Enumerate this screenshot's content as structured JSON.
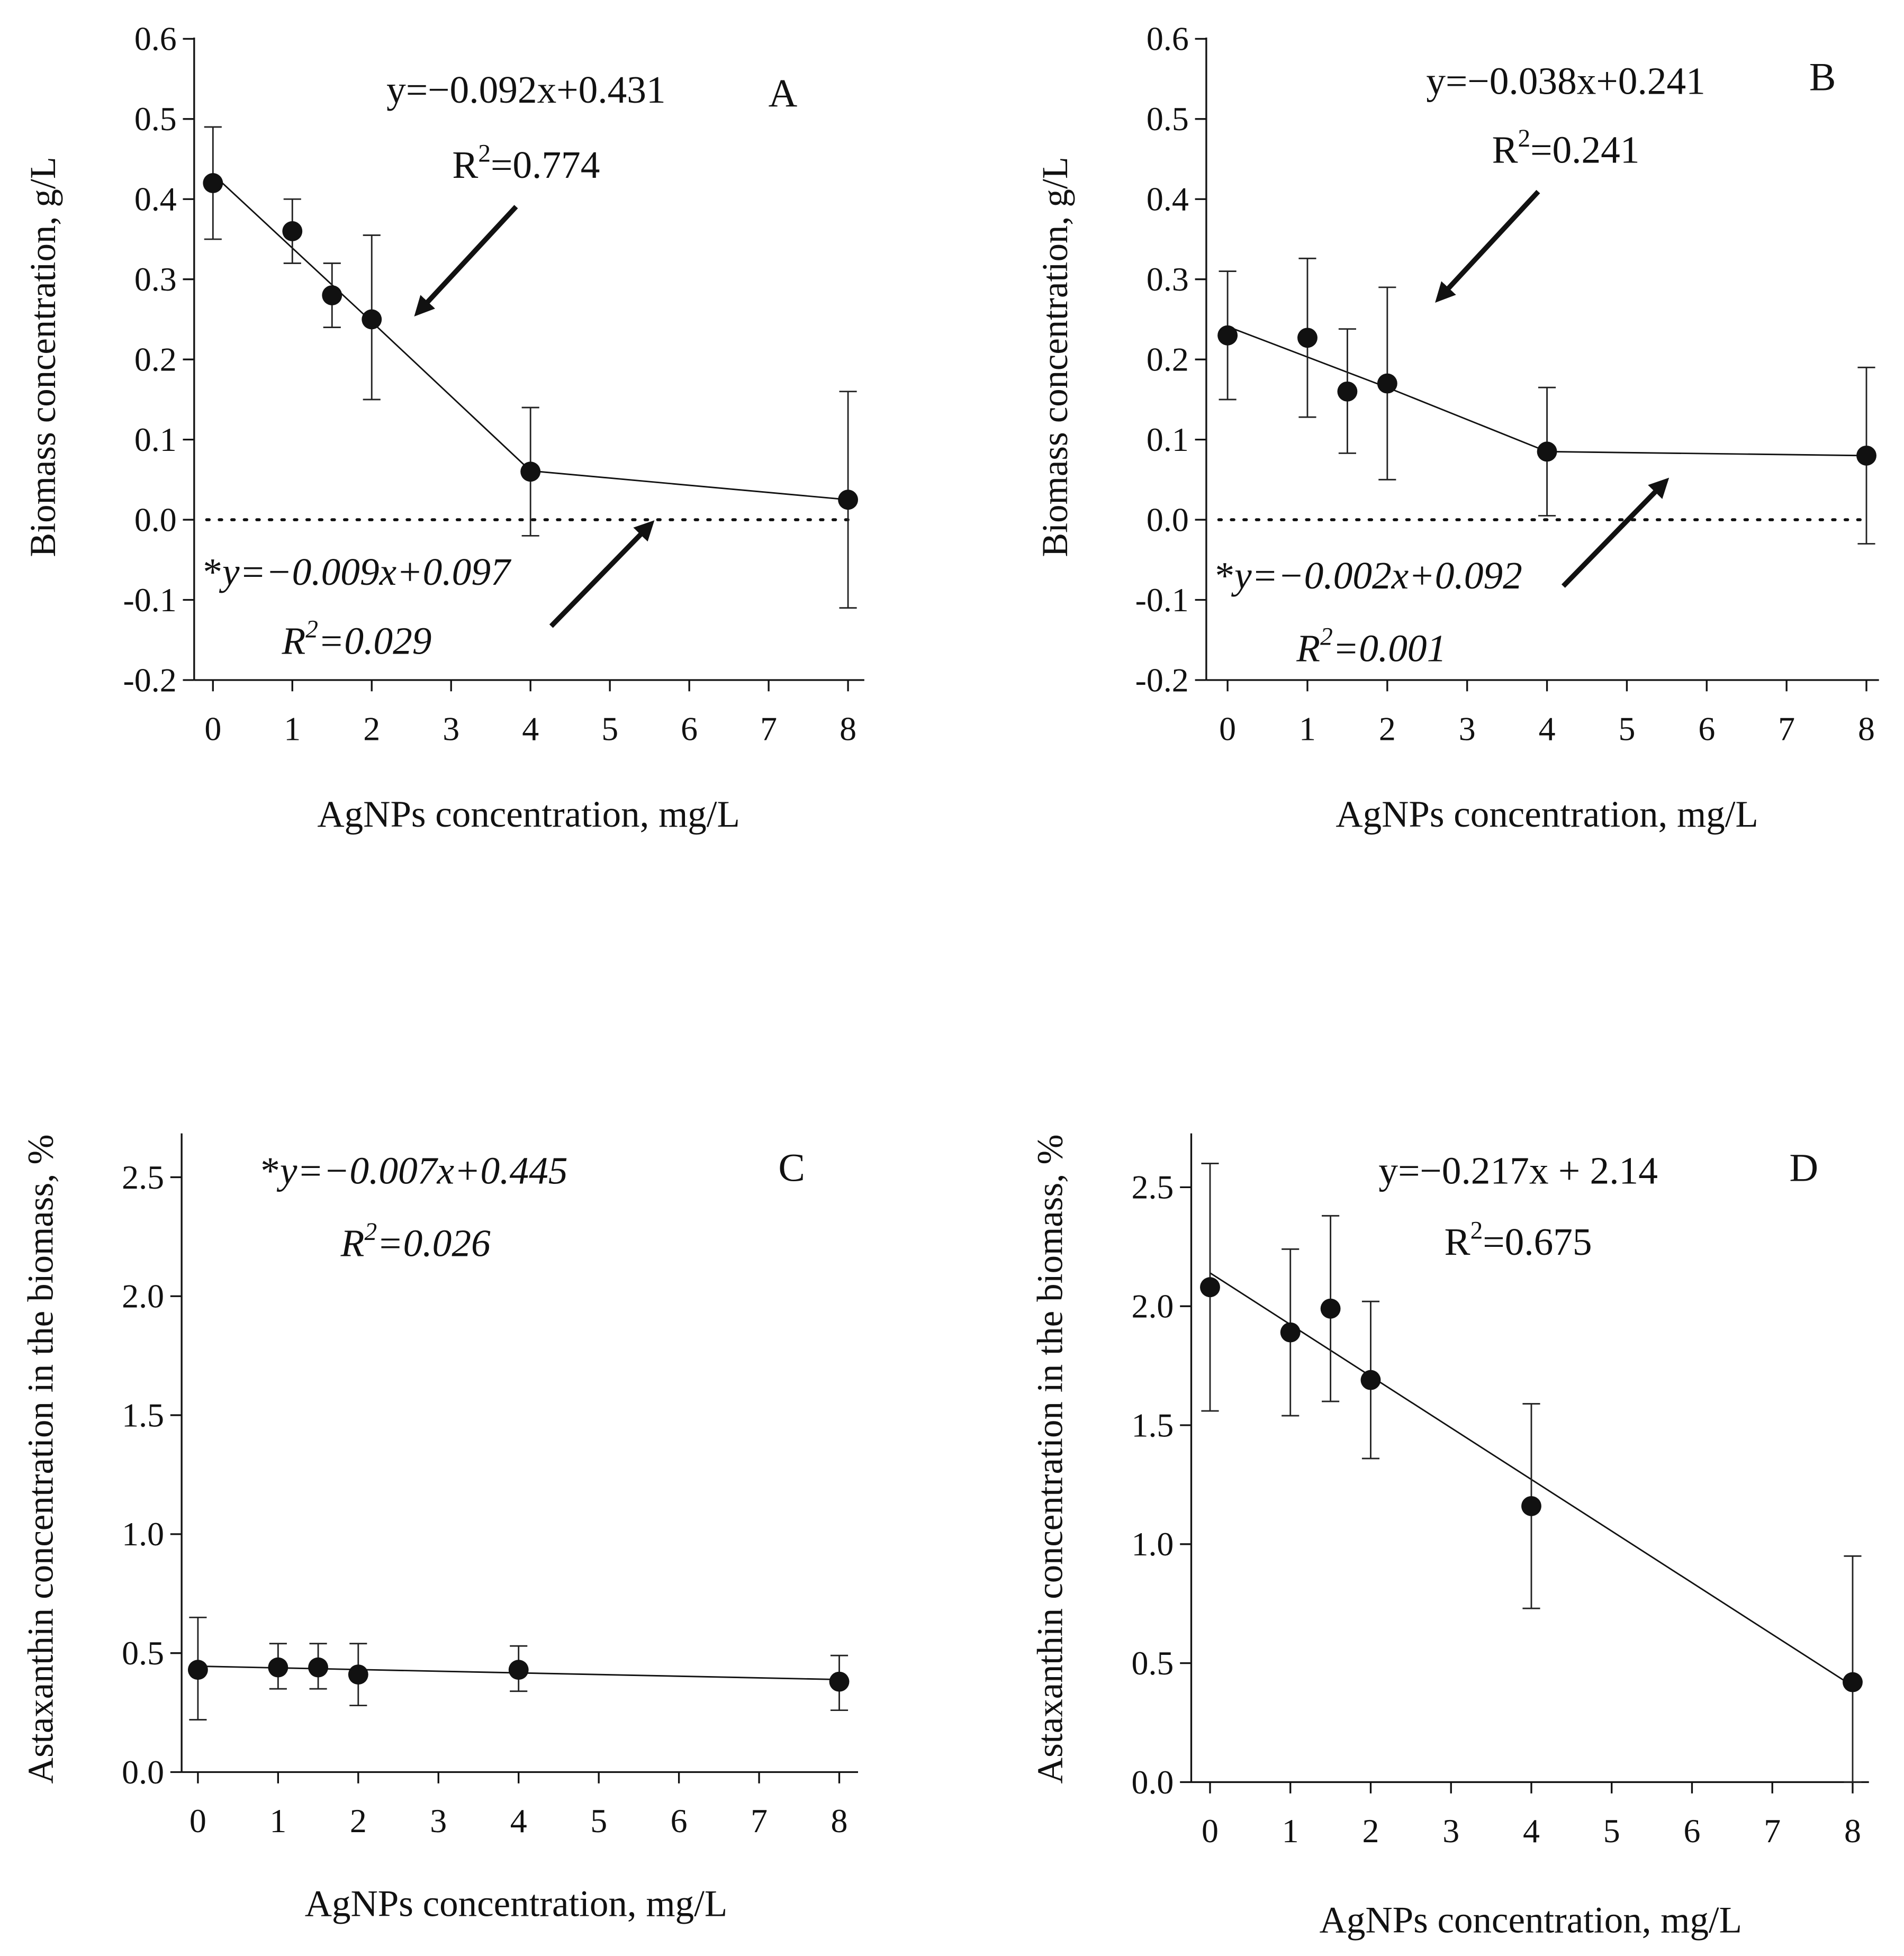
{
  "chart_data": [
    {
      "panel": "A",
      "type": "scatter",
      "xlabel": "AgNPs concentration, mg/L",
      "ylabel": "Biomass concentration, g/L",
      "xlim": [
        0,
        8
      ],
      "ylim": [
        -0.2,
        0.6
      ],
      "xticks": [
        0,
        1,
        2,
        3,
        4,
        5,
        6,
        7,
        8
      ],
      "yticks": [
        -0.2,
        -0.1,
        0.0,
        0.1,
        0.2,
        0.3,
        0.4,
        0.5,
        0.6
      ],
      "ytick_labels": [
        "-0.2",
        "-0.1",
        "0.0",
        "0.1",
        "0.2",
        "0.3",
        "0.4",
        "0.5",
        "0.6"
      ],
      "xtick_labels": [
        "0",
        "1",
        "2",
        "3",
        "4",
        "5",
        "6",
        "7",
        "8"
      ],
      "points": [
        {
          "x": 0,
          "y": 0.42,
          "err_low": 0.35,
          "err_high": 0.49
        },
        {
          "x": 1,
          "y": 0.36,
          "err_low": 0.32,
          "err_high": 0.4
        },
        {
          "x": 1.5,
          "y": 0.28,
          "err_low": 0.24,
          "err_high": 0.32
        },
        {
          "x": 2,
          "y": 0.25,
          "err_low": 0.15,
          "err_high": 0.355
        },
        {
          "x": 4,
          "y": 0.06,
          "err_low": -0.02,
          "err_high": 0.14
        },
        {
          "x": 8,
          "y": 0.025,
          "err_low": -0.11,
          "err_high": 0.16
        }
      ],
      "connecting_line": [
        [
          0,
          0.431
        ],
        [
          2,
          0.247
        ],
        [
          4,
          0.061
        ],
        [
          8,
          0.025
        ]
      ],
      "zero_line": true,
      "annotations": [
        {
          "id": "eq1",
          "text": "y=−0.092x+0.431",
          "italic": false
        },
        {
          "id": "r1",
          "r_prefix": "R",
          "sup": "2",
          "value": "=0.774",
          "italic": false
        },
        {
          "id": "eq2",
          "star": "*",
          "text": "y=−0.009x+0.097",
          "italic": true
        },
        {
          "id": "r2",
          "r_prefix": "R",
          "sup": "2",
          "value": "=0.029",
          "italic": true
        }
      ]
    },
    {
      "panel": "B",
      "type": "scatter",
      "xlabel": "AgNPs concentration, mg/L",
      "ylabel": "Biomass concentration, g/L",
      "xlim": [
        0,
        8
      ],
      "ylim": [
        -0.2,
        0.6
      ],
      "xticks": [
        0,
        1,
        2,
        3,
        4,
        5,
        6,
        7,
        8
      ],
      "yticks": [
        -0.2,
        -0.1,
        0.0,
        0.1,
        0.2,
        0.3,
        0.4,
        0.5,
        0.6
      ],
      "ytick_labels": [
        "-0.2",
        "-0.1",
        "0.0",
        "0.1",
        "0.2",
        "0.3",
        "0.4",
        "0.5",
        "0.6"
      ],
      "xtick_labels": [
        "0",
        "1",
        "2",
        "3",
        "4",
        "5",
        "6",
        "7",
        "8"
      ],
      "points": [
        {
          "x": 0,
          "y": 0.23,
          "err_low": 0.15,
          "err_high": 0.31
        },
        {
          "x": 1,
          "y": 0.227,
          "err_low": 0.128,
          "err_high": 0.326
        },
        {
          "x": 1.5,
          "y": 0.16,
          "err_low": 0.083,
          "err_high": 0.238
        },
        {
          "x": 2,
          "y": 0.17,
          "err_low": 0.05,
          "err_high": 0.29
        },
        {
          "x": 4,
          "y": 0.085,
          "err_low": 0.005,
          "err_high": 0.165
        },
        {
          "x": 8,
          "y": 0.08,
          "err_low": -0.03,
          "err_high": 0.19
        }
      ],
      "connecting_line": [
        [
          0,
          0.241
        ],
        [
          2,
          0.165
        ],
        [
          4,
          0.085
        ],
        [
          8,
          0.08
        ]
      ],
      "zero_line": true,
      "annotations": [
        {
          "id": "eq1",
          "text": "y=−0.038x+0.241",
          "italic": false
        },
        {
          "id": "r1",
          "r_prefix": "R",
          "sup": "2",
          "value": "=0.241",
          "italic": false
        },
        {
          "id": "eq2",
          "star": "*",
          "text": "y=−0.002x+0.092",
          "italic": true
        },
        {
          "id": "r2",
          "r_prefix": "R",
          "sup": "2",
          "value": "=0.001",
          "italic": true
        }
      ]
    },
    {
      "panel": "C",
      "type": "scatter",
      "xlabel": "AgNPs concentration, mg/L",
      "ylabel": "Astaxanthin concentration in the biomass, %",
      "xlim": [
        0,
        8
      ],
      "ylim": [
        0,
        2.7
      ],
      "xticks": [
        0,
        1,
        2,
        3,
        4,
        5,
        6,
        7,
        8
      ],
      "yticks": [
        0.0,
        0.5,
        1.0,
        1.5,
        2.0,
        2.5
      ],
      "ytick_labels": [
        "0.0",
        "0.5",
        "1.0",
        "1.5",
        "2.0",
        "2.5"
      ],
      "xtick_labels": [
        "0",
        "1",
        "2",
        "3",
        "4",
        "5",
        "6",
        "7",
        "8"
      ],
      "points": [
        {
          "x": 0,
          "y": 0.43,
          "err_low": 0.22,
          "err_high": 0.65
        },
        {
          "x": 1,
          "y": 0.44,
          "err_low": 0.35,
          "err_high": 0.54
        },
        {
          "x": 1.5,
          "y": 0.44,
          "err_low": 0.35,
          "err_high": 0.54
        },
        {
          "x": 2,
          "y": 0.41,
          "err_low": 0.28,
          "err_high": 0.54
        },
        {
          "x": 4,
          "y": 0.43,
          "err_low": 0.34,
          "err_high": 0.53
        },
        {
          "x": 8,
          "y": 0.38,
          "err_low": 0.26,
          "err_high": 0.49
        }
      ],
      "connecting_line": [
        [
          0,
          0.445
        ],
        [
          1,
          0.438
        ],
        [
          2,
          0.431
        ],
        [
          4,
          0.417
        ],
        [
          8,
          0.389
        ]
      ],
      "zero_line": false,
      "annotations": [
        {
          "id": "eq2",
          "star": "*",
          "text": "y=−0.007x+0.445",
          "italic": true
        },
        {
          "id": "r2",
          "r_prefix": "R",
          "sup": "2",
          "value": "=0.026",
          "italic": true
        }
      ]
    },
    {
      "panel": "D",
      "type": "scatter",
      "xlabel": "AgNPs concentration, mg/L",
      "ylabel": "Astaxanthin concentration in the biomass, %",
      "xlim": [
        0,
        8
      ],
      "ylim": [
        0,
        2.7
      ],
      "xticks": [
        0,
        1,
        2,
        3,
        4,
        5,
        6,
        7,
        8
      ],
      "yticks": [
        0.0,
        0.5,
        1.0,
        1.5,
        2.0,
        2.5
      ],
      "ytick_labels": [
        "0.0",
        "0.5",
        "1.0",
        "1.5",
        "2.0",
        "2.5"
      ],
      "xtick_labels": [
        "0",
        "1",
        "2",
        "3",
        "4",
        "5",
        "6",
        "7",
        "8"
      ],
      "points": [
        {
          "x": 0,
          "y": 2.08,
          "err_low": 1.56,
          "err_high": 2.6
        },
        {
          "x": 1,
          "y": 1.89,
          "err_low": 1.54,
          "err_high": 2.24
        },
        {
          "x": 1.5,
          "y": 1.99,
          "err_low": 1.6,
          "err_high": 2.38
        },
        {
          "x": 2,
          "y": 1.69,
          "err_low": 1.36,
          "err_high": 2.02
        },
        {
          "x": 4,
          "y": 1.16,
          "err_low": 0.73,
          "err_high": 1.59
        },
        {
          "x": 8,
          "y": 0.42,
          "err_low": 0.0,
          "err_high": 0.95
        }
      ],
      "connecting_line": [
        [
          0,
          2.14
        ],
        [
          8,
          0.404
        ]
      ],
      "zero_line": false,
      "annotations": [
        {
          "id": "eq1",
          "text": "y=−0.217x + 2.14",
          "italic": false
        },
        {
          "id": "r1",
          "r_prefix": "R",
          "sup": "2",
          "value": "=0.675",
          "italic": false
        }
      ]
    }
  ]
}
